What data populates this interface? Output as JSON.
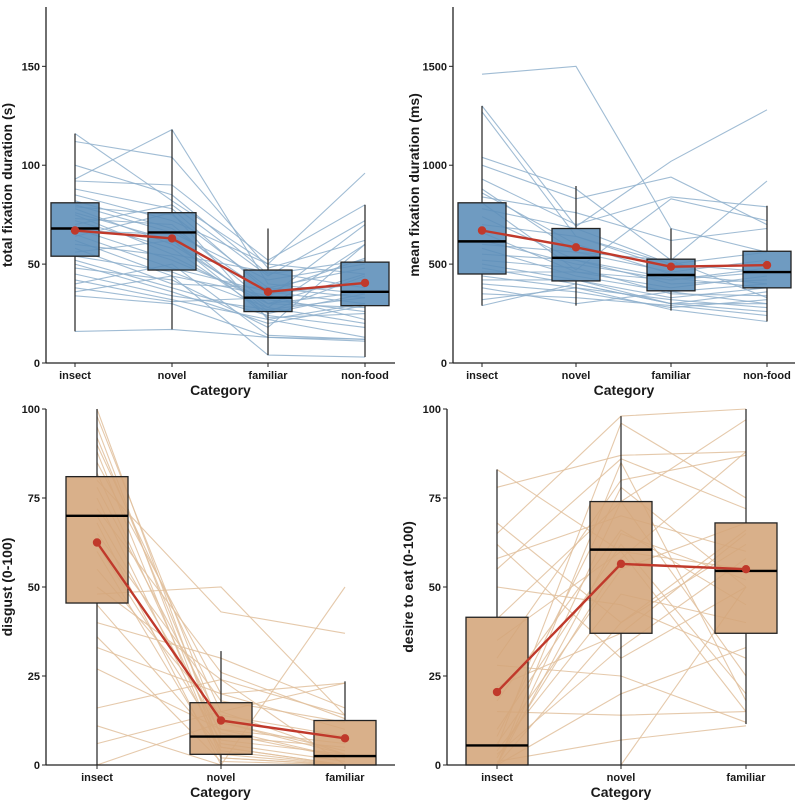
{
  "chart_data": [
    {
      "type": "boxplot",
      "panel": "top-left",
      "title": "",
      "xlabel": "Category",
      "ylabel": "total fixation duration (s)",
      "categories": [
        "insect",
        "novel",
        "familiar",
        "non-food"
      ],
      "ylim": [
        0,
        180
      ],
      "yticks": [
        0,
        50,
        100,
        150
      ],
      "grid": false,
      "fill_color": "#5b8db8",
      "line_color": "#8fb0cc",
      "mean_color": "#c0392b",
      "boxes": [
        {
          "category": "insect",
          "whisker_low": 16,
          "q1": 54,
          "median": 68,
          "q3": 81,
          "whisker_high": 116
        },
        {
          "category": "novel",
          "whisker_low": 17,
          "q1": 47,
          "median": 66,
          "q3": 76,
          "whisker_high": 118
        },
        {
          "category": "familiar",
          "whisker_low": 4,
          "q1": 26,
          "median": 33,
          "q3": 47,
          "whisker_high": 68
        },
        {
          "category": "non-food",
          "whisker_low": 3,
          "q1": 29,
          "median": 36,
          "q3": 51,
          "whisker_high": 80
        }
      ],
      "means": [
        67,
        63,
        36,
        40.5
      ],
      "participants": [
        [
          116,
          82,
          50,
          45
        ],
        [
          112,
          104,
          48,
          62
        ],
        [
          100,
          85,
          45,
          52
        ],
        [
          93,
          118,
          40,
          35
        ],
        [
          92,
          90,
          52,
          80
        ],
        [
          88,
          78,
          36,
          30
        ],
        [
          85,
          72,
          50,
          96
        ],
        [
          82,
          68,
          35,
          40
        ],
        [
          80,
          66,
          42,
          50
        ],
        [
          79,
          75,
          38,
          33
        ],
        [
          78,
          60,
          30,
          45
        ],
        [
          76,
          62,
          28,
          60
        ],
        [
          75,
          55,
          46,
          38
        ],
        [
          73,
          70,
          30,
          28
        ],
        [
          72,
          58,
          25,
          35
        ],
        [
          70,
          80,
          44,
          72
        ],
        [
          68,
          52,
          32,
          26
        ],
        [
          67,
          65,
          26,
          44
        ],
        [
          65,
          48,
          36,
          53
        ],
        [
          64,
          76,
          22,
          30
        ],
        [
          62,
          44,
          34,
          22
        ],
        [
          60,
          54,
          30,
          36
        ],
        [
          58,
          40,
          38,
          48
        ],
        [
          56,
          62,
          23,
          25
        ],
        [
          54,
          46,
          28,
          20
        ],
        [
          52,
          38,
          24,
          18
        ],
        [
          50,
          36,
          20,
          29
        ],
        [
          48,
          42,
          18,
          60
        ],
        [
          45,
          34,
          27,
          33
        ],
        [
          42,
          32,
          22,
          13
        ],
        [
          40,
          50,
          14,
          12
        ],
        [
          38,
          31,
          33,
          70
        ],
        [
          36,
          44,
          4,
          3
        ],
        [
          34,
          30,
          13,
          11
        ],
        [
          16,
          17,
          13,
          12
        ]
      ]
    },
    {
      "type": "boxplot",
      "panel": "top-right",
      "title": "",
      "xlabel": "Category",
      "ylabel": "mean fixation duration (ms)",
      "categories": [
        "insect",
        "novel",
        "familiar",
        "non-food"
      ],
      "ylim": [
        0,
        1800
      ],
      "yticks": [
        0,
        500,
        1000,
        1500
      ],
      "grid": false,
      "fill_color": "#5b8db8",
      "line_color": "#8fb0cc",
      "mean_color": "#c0392b",
      "boxes": [
        {
          "category": "insect",
          "whisker_low": 290,
          "q1": 450,
          "median": 615,
          "q3": 810,
          "whisker_high": 1300
        },
        {
          "category": "novel",
          "whisker_low": 290,
          "q1": 415,
          "median": 532,
          "q3": 680,
          "whisker_high": 895
        },
        {
          "category": "familiar",
          "whisker_low": 265,
          "q1": 365,
          "median": 445,
          "q3": 525,
          "whisker_high": 680
        },
        {
          "category": "non-food",
          "whisker_low": 210,
          "q1": 380,
          "median": 460,
          "q3": 565,
          "whisker_high": 795
        }
      ],
      "means": [
        670,
        585,
        487,
        495
      ],
      "participants": [
        [
          1460,
          1500,
          680,
          560
        ],
        [
          1300,
          690,
          1020,
          1280
        ],
        [
          1270,
          640,
          500,
          460
        ],
        [
          1040,
          880,
          520,
          330
        ],
        [
          1000,
          830,
          940,
          700
        ],
        [
          930,
          700,
          840,
          790
        ],
        [
          880,
          560,
          520,
          920
        ],
        [
          860,
          600,
          450,
          400
        ],
        [
          840,
          760,
          620,
          680
        ],
        [
          810,
          470,
          830,
          720
        ],
        [
          780,
          680,
          500,
          560
        ],
        [
          740,
          520,
          430,
          380
        ],
        [
          700,
          640,
          480,
          500
        ],
        [
          660,
          460,
          380,
          440
        ],
        [
          620,
          500,
          420,
          460
        ],
        [
          600,
          560,
          460,
          520
        ],
        [
          580,
          440,
          360,
          300
        ],
        [
          550,
          520,
          400,
          420
        ],
        [
          520,
          480,
          350,
          340
        ],
        [
          500,
          420,
          330,
          380
        ],
        [
          480,
          400,
          300,
          300
        ],
        [
          460,
          460,
          420,
          480
        ],
        [
          440,
          380,
          320,
          280
        ],
        [
          420,
          420,
          300,
          260
        ],
        [
          400,
          360,
          280,
          320
        ],
        [
          380,
          300,
          360,
          400
        ],
        [
          350,
          330,
          290,
          240
        ],
        [
          320,
          380,
          270,
          210
        ],
        [
          290,
          400,
          300,
          360
        ]
      ]
    },
    {
      "type": "boxplot",
      "panel": "bottom-left",
      "title": "",
      "xlabel": "Category",
      "ylabel": "disgust (0-100)",
      "categories": [
        "insect",
        "novel",
        "familiar"
      ],
      "ylim": [
        0,
        100
      ],
      "yticks": [
        0,
        25,
        50,
        75,
        100
      ],
      "grid": false,
      "fill_color": "#d4a57a",
      "line_color": "#e0bf9c",
      "mean_color": "#c0392b",
      "boxes": [
        {
          "category": "insect",
          "whisker_low": 0,
          "q1": 45.5,
          "median": 70,
          "q3": 81,
          "whisker_high": 100
        },
        {
          "category": "novel",
          "whisker_low": 0,
          "q1": 3,
          "median": 8,
          "q3": 17.5,
          "whisker_high": 32
        },
        {
          "category": "familiar",
          "whisker_low": 0,
          "q1": 0,
          "median": 2.5,
          "q3": 12.5,
          "whisker_high": 23.5
        }
      ],
      "means": [
        62.5,
        12.5,
        7.5
      ],
      "participants": [
        [
          100,
          5,
          0
        ],
        [
          98,
          10,
          2
        ],
        [
          95,
          3,
          0
        ],
        [
          92,
          8,
          5
        ],
        [
          90,
          15,
          3
        ],
        [
          88,
          2,
          0
        ],
        [
          85,
          20,
          10
        ],
        [
          82,
          6,
          1
        ],
        [
          80,
          43,
          37
        ],
        [
          78,
          12,
          4
        ],
        [
          75,
          4,
          0
        ],
        [
          72,
          26,
          13
        ],
        [
          70,
          9,
          2
        ],
        [
          68,
          0,
          0
        ],
        [
          65,
          18,
          12
        ],
        [
          62,
          7,
          3
        ],
        [
          60,
          2,
          0
        ],
        [
          55,
          14,
          8
        ],
        [
          50,
          24,
          14
        ],
        [
          48,
          50,
          14
        ],
        [
          45,
          5,
          0
        ],
        [
          40,
          30,
          16
        ],
        [
          36,
          1,
          0
        ],
        [
          33,
          20,
          23
        ],
        [
          27,
          10,
          6
        ],
        [
          16,
          24,
          0
        ],
        [
          11,
          0,
          50
        ],
        [
          6,
          15,
          23
        ],
        [
          0,
          12,
          3
        ]
      ]
    },
    {
      "type": "boxplot",
      "panel": "bottom-right",
      "title": "",
      "xlabel": "Category",
      "ylabel": "desire to eat (0-100)",
      "categories": [
        "insect",
        "novel",
        "familiar"
      ],
      "ylim": [
        0,
        100
      ],
      "yticks": [
        0,
        25,
        50,
        75,
        100
      ],
      "grid": false,
      "fill_color": "#d4a57a",
      "line_color": "#e0bf9c",
      "mean_color": "#c0392b",
      "boxes": [
        {
          "category": "insect",
          "whisker_low": 0,
          "q1": 0,
          "median": 5.5,
          "q3": 41.5,
          "whisker_high": 83
        },
        {
          "category": "novel",
          "whisker_low": 0,
          "q1": 37,
          "median": 60.5,
          "q3": 74,
          "whisker_high": 98
        },
        {
          "category": "familiar",
          "whisker_low": 11.5,
          "q1": 37,
          "median": 54.5,
          "q3": 68,
          "whisker_high": 100
        }
      ],
      "means": [
        20.5,
        56.5,
        55
      ],
      "participants": [
        [
          83,
          60,
          15
        ],
        [
          78,
          87,
          88
        ],
        [
          68,
          40,
          66
        ],
        [
          65,
          98,
          100
        ],
        [
          62,
          30,
          50
        ],
        [
          58,
          70,
          60
        ],
        [
          55,
          86,
          72
        ],
        [
          50,
          45,
          30
        ],
        [
          41,
          74,
          97
        ],
        [
          35,
          60,
          55
        ],
        [
          30,
          80,
          87
        ],
        [
          28,
          25,
          12
        ],
        [
          22,
          37,
          65
        ],
        [
          18,
          66,
          45
        ],
        [
          15,
          14,
          15
        ],
        [
          10,
          62,
          20
        ],
        [
          8,
          78,
          50
        ],
        [
          6,
          55,
          68
        ],
        [
          5,
          96,
          75
        ],
        [
          4,
          48,
          40
        ],
        [
          3,
          33,
          58
        ],
        [
          2,
          58,
          88
        ],
        [
          1,
          7,
          11
        ],
        [
          0,
          40,
          62
        ],
        [
          0,
          74,
          25
        ],
        [
          0,
          20,
          33
        ],
        [
          0,
          0,
          50
        ],
        [
          0,
          85,
          18
        ],
        [
          0,
          65,
          52
        ]
      ]
    }
  ]
}
